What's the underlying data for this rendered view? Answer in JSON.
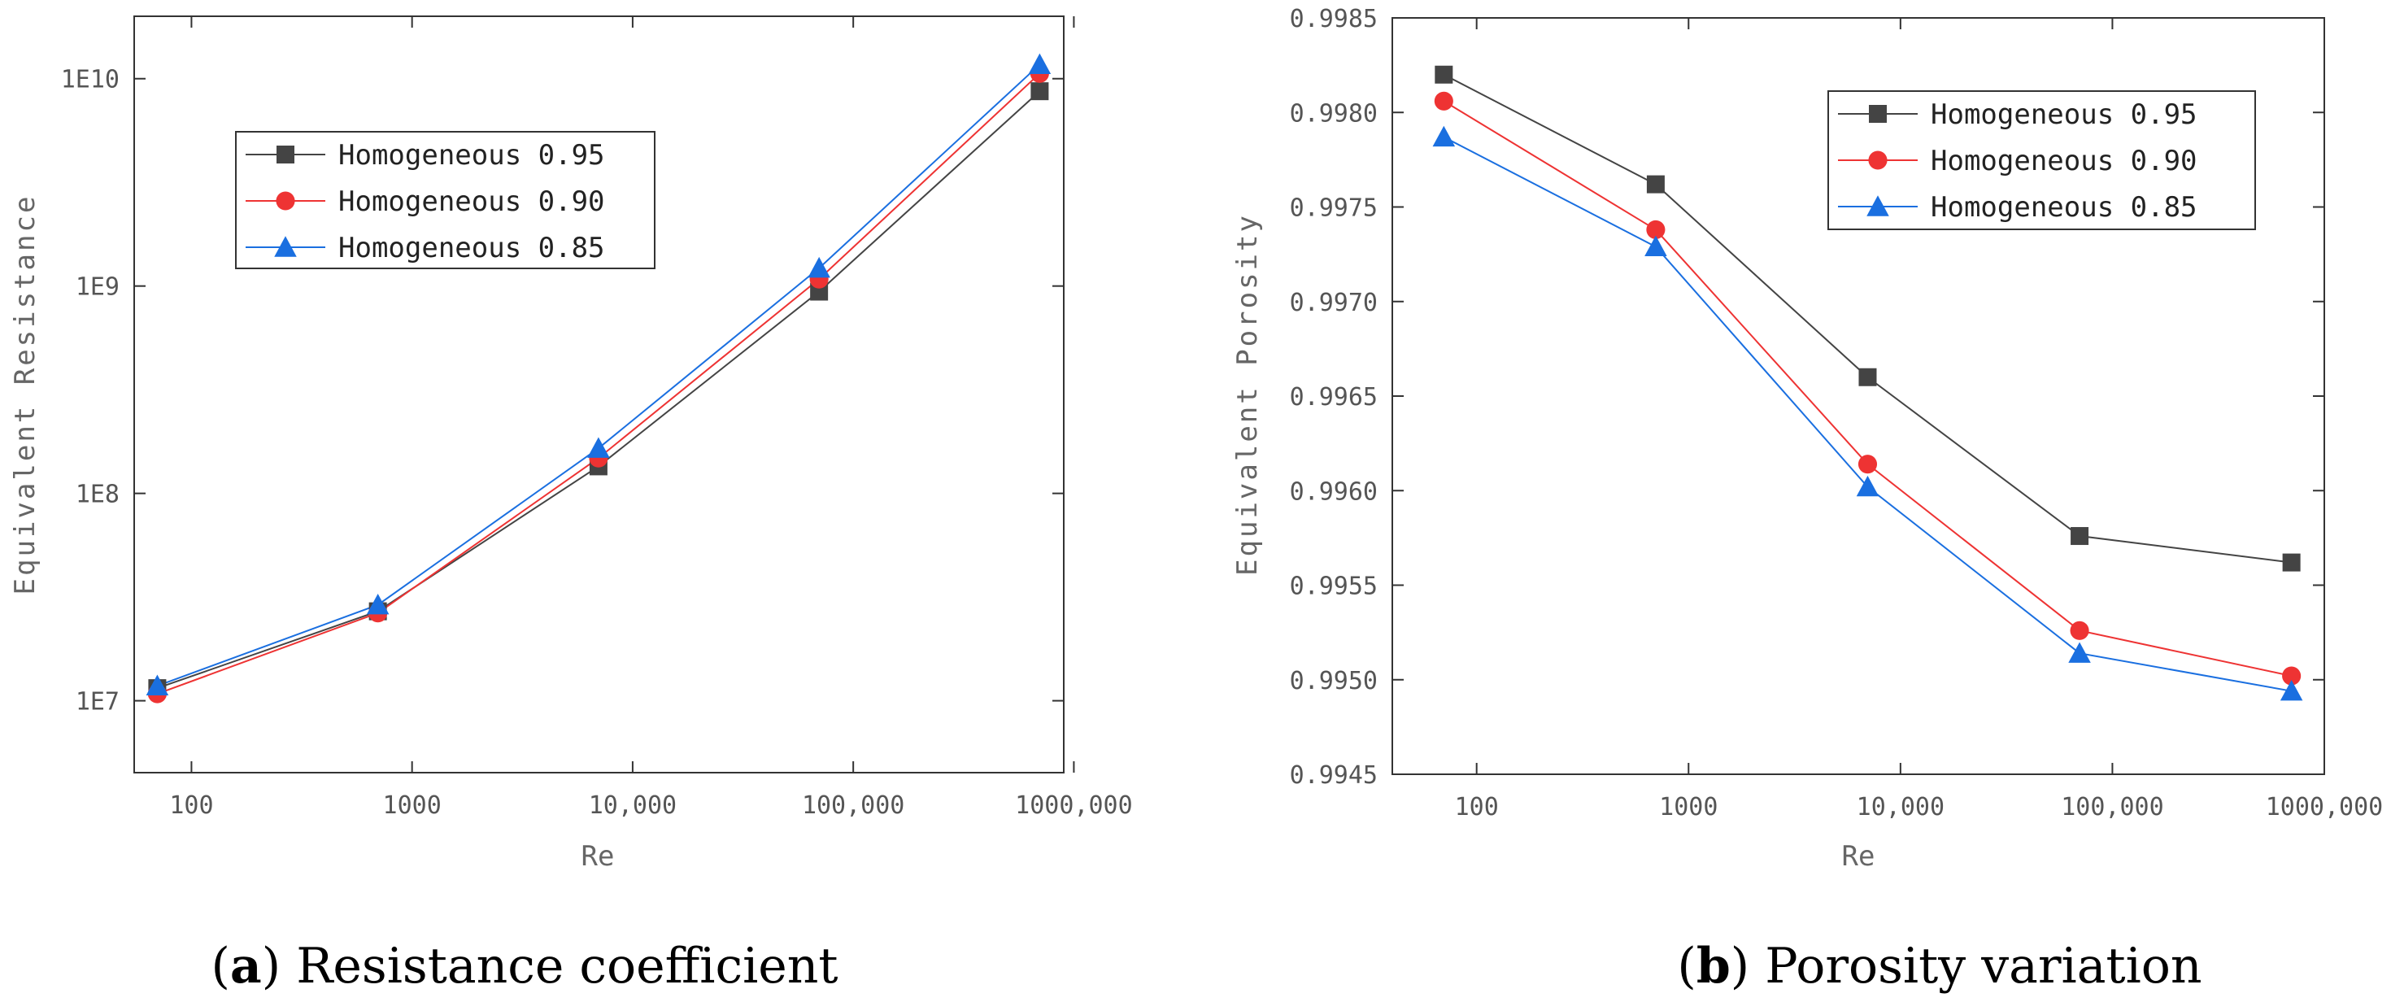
{
  "chart_data": [
    {
      "type": "line",
      "panel_label": "a",
      "caption": "Resistance coefficient",
      "xlabel": "Re",
      "ylabel": "Equivalent Resistance",
      "xscale": "log",
      "yscale": "log",
      "xlim": [
        55,
        900000
      ],
      "ylim": [
        4500000,
        20000000000
      ],
      "x_ticks": [
        100,
        1000,
        10000,
        100000,
        1000000
      ],
      "x_tick_labels": [
        "100",
        "1000",
        "10,000",
        "100,000",
        "1000,000"
      ],
      "y_ticks": [
        10000000,
        100000000,
        1000000000,
        10000000000
      ],
      "y_tick_labels": [
        "1E7",
        "1E8",
        "1E9",
        "1E10"
      ],
      "x": [
        70,
        700,
        7000,
        70000,
        700000
      ],
      "series": [
        {
          "name": "Homogeneous 0.95",
          "color": "#444444",
          "marker": "square",
          "values": [
            11500000,
            27000000,
            135000000,
            940000000,
            8700000000
          ]
        },
        {
          "name": "Homogeneous 0.90",
          "color": "#ee3333",
          "marker": "circle",
          "values": [
            10800000,
            26500000,
            148000000,
            1080000000,
            10600000000
          ]
        },
        {
          "name": "Homogeneous 0.85",
          "color": "#1a6fe0",
          "marker": "triangle",
          "values": [
            11800000,
            29000000,
            165000000,
            1220000000,
            11700000000
          ]
        }
      ],
      "legend_position": "upper-left"
    },
    {
      "type": "line",
      "panel_label": "b",
      "caption": "Porosity variation",
      "xlabel": "Re",
      "ylabel": "Equivalent Porosity",
      "xscale": "log",
      "yscale": "linear",
      "xlim": [
        40,
        1000000
      ],
      "ylim": [
        0.9945,
        0.9985
      ],
      "x_ticks": [
        100,
        1000,
        10000,
        100000,
        1000000
      ],
      "x_tick_labels": [
        "100",
        "1000",
        "10,000",
        "100,000",
        "1000,000"
      ],
      "y_ticks": [
        0.9945,
        0.995,
        0.9955,
        0.996,
        0.9965,
        0.997,
        0.9975,
        0.998,
        0.9985
      ],
      "y_tick_labels": [
        "0.9945",
        "0.9950",
        "0.9955",
        "0.9960",
        "0.9965",
        "0.9970",
        "0.9975",
        "0.9980",
        "0.9985"
      ],
      "x": [
        70,
        700,
        7000,
        70000,
        700000
      ],
      "series": [
        {
          "name": "Homogeneous 0.95",
          "color": "#444444",
          "marker": "square",
          "values": [
            0.9982,
            0.99762,
            0.9966,
            0.99576,
            0.99562
          ]
        },
        {
          "name": "Homogeneous 0.90",
          "color": "#ee3333",
          "marker": "circle",
          "values": [
            0.99806,
            0.99738,
            0.99614,
            0.99526,
            0.99502
          ]
        },
        {
          "name": "Homogeneous 0.85",
          "color": "#1a6fe0",
          "marker": "triangle",
          "values": [
            0.99787,
            0.99729,
            0.99602,
            0.99514,
            0.99494
          ]
        }
      ],
      "legend_position": "upper-right"
    }
  ]
}
